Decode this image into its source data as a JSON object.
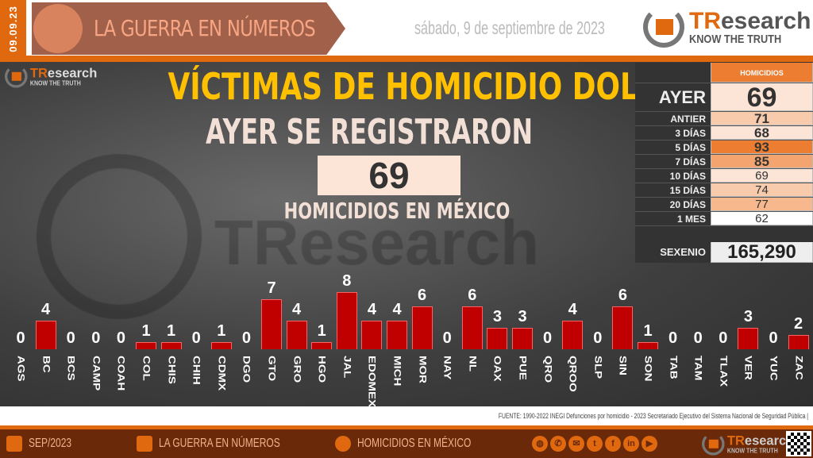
{
  "header": {
    "date_strip": "09.09.23",
    "banner_title": "LA GUERRA EN NÚMEROS",
    "date": "sábado, 9 de septiembre de 2023",
    "logo_brand": "TResearch",
    "logo_tagline": "KNOW THE TRUTH"
  },
  "main": {
    "title": "VÍCTIMAS DE HOMICIDIO DOLOSO",
    "subtitle": "AYER SE REGISTRARON",
    "count": "69",
    "count_label": "HOMICIDIOS EN MÉXICO",
    "watermark": "TResearch"
  },
  "table": {
    "header": "HOMICIDIOS",
    "rows": [
      {
        "label": "AYER",
        "value": "69",
        "color": "#fce4d6"
      },
      {
        "label": "ANTIER",
        "value": "71",
        "color": "#f8cbad"
      },
      {
        "label": "3 DÍAS",
        "value": "68",
        "color": "#fce4d6"
      },
      {
        "label": "5 DÍAS",
        "value": "93",
        "color": "#ed7d31"
      },
      {
        "label": "7 DÍAS",
        "value": "85",
        "color": "#f4a46e"
      },
      {
        "label": "10 DÍAS",
        "value": "69",
        "color": "#fce4d6"
      },
      {
        "label": "15 DÍAS",
        "value": "74",
        "color": "#f8cbad"
      },
      {
        "label": "20 DÍAS",
        "value": "77",
        "color": "#f6b88c"
      },
      {
        "label": "1 MES",
        "value": "62",
        "color": "#ffffff"
      }
    ],
    "sexenio_label": "SEXENIO",
    "sexenio_value": "165,290"
  },
  "chart_data": {
    "type": "bar",
    "categories": [
      "AGS",
      "BC",
      "BCS",
      "CAMP",
      "COAH",
      "COL",
      "CHIS",
      "CHIH",
      "CDMX",
      "DGO",
      "GTO",
      "GRO",
      "HGO",
      "JAL",
      "EDOMEX",
      "MICH",
      "MOR",
      "NAY",
      "NL",
      "OAX",
      "PUE",
      "QRO",
      "QROO",
      "SLP",
      "SIN",
      "SON",
      "TAB",
      "TAM",
      "TLAX",
      "VER",
      "YUC",
      "ZAC"
    ],
    "values": [
      0,
      4,
      0,
      0,
      0,
      1,
      1,
      0,
      1,
      0,
      7,
      4,
      1,
      8,
      4,
      4,
      6,
      0,
      6,
      3,
      3,
      0,
      4,
      0,
      6,
      1,
      0,
      0,
      0,
      3,
      0,
      2
    ],
    "bar_color": "#c00000"
  },
  "source": "FUENTE: 1990-2022 INEGI Defunciones por homicidio - 2023 Secretariado Ejecutivo del Sistema Nacional de Seguridad Pública |",
  "footer": {
    "period": "SEP/2023",
    "section": "LA GUERRA EN NÚMEROS",
    "topic": "HOMICIDIOS EN MÉXICO",
    "social": [
      "globe-icon",
      "phone-icon",
      "mail-icon",
      "twitter-icon",
      "facebook-icon",
      "linkedin-icon",
      "youtube-icon"
    ]
  }
}
